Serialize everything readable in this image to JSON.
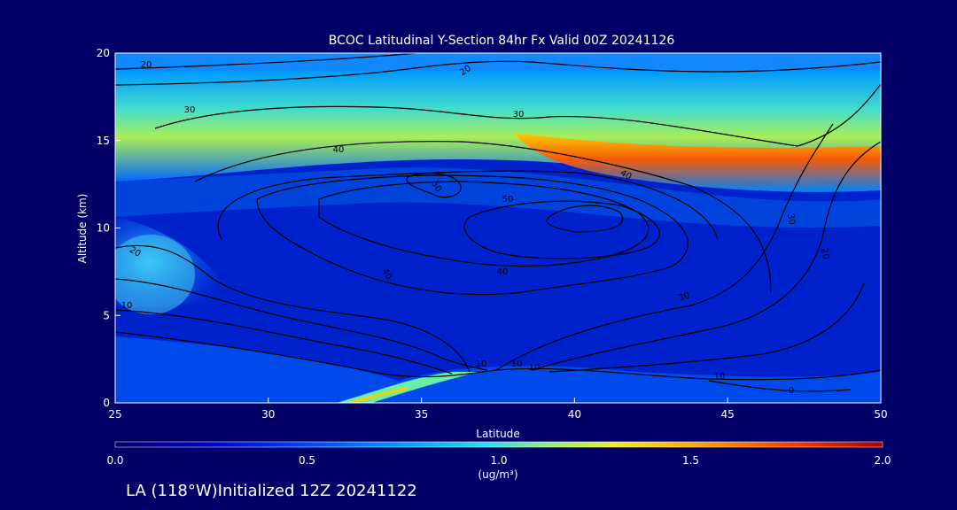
{
  "chart_data": {
    "type": "heatmap",
    "title": "BCOC Latitudinal Y-Section 84hr  Fx Valid 00Z 20241126",
    "xlabel": "Latitude",
    "ylabel": "Altitude (km)",
    "xlim": [
      25,
      50
    ],
    "ylim": [
      0,
      20
    ],
    "x_ticks": [
      25,
      30,
      35,
      40,
      45,
      50
    ],
    "y_ticks": [
      0,
      5,
      10,
      15,
      20
    ],
    "colorbar": {
      "min": 0.0,
      "max": 2.0,
      "tick_labels": [
        "0.0",
        "0.5",
        "1.0",
        "1.5",
        "2.0"
      ],
      "unit_label": "(ug/m³)"
    },
    "contour_labels": [
      "20",
      "20",
      "30",
      "30",
      "40",
      "40",
      "50",
      "50",
      "40",
      "40",
      "30",
      "30",
      "20",
      "20",
      "10",
      "10",
      "10",
      "10",
      "10",
      "0"
    ],
    "footer": "LA (118°W)Initialized 12Z 20241122"
  }
}
